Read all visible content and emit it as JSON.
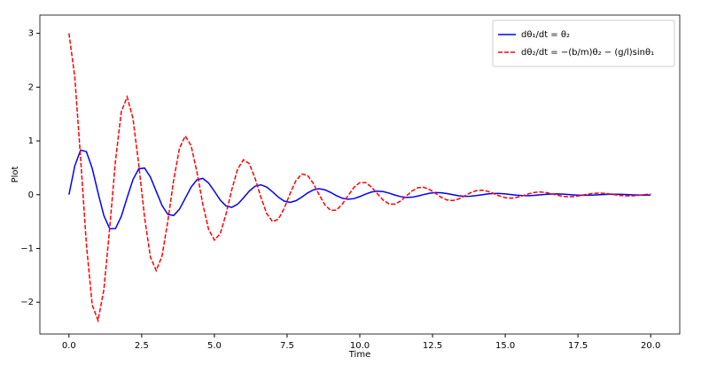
{
  "chart_data": {
    "type": "line",
    "xlabel": "Time",
    "ylabel": "Plot",
    "x": [
      0,
      0.2,
      0.4,
      0.6,
      0.8,
      1,
      1.2,
      1.4,
      1.6,
      1.8,
      2,
      2.2,
      2.4,
      2.6,
      2.8,
      3,
      3.2,
      3.4,
      3.6,
      3.8,
      4,
      4.2,
      4.4,
      4.6,
      4.8,
      5,
      5.2,
      5.4,
      5.6,
      5.8,
      6,
      6.2,
      6.4,
      6.6,
      6.8,
      7,
      7.2,
      7.4,
      7.6,
      7.8,
      8,
      8.2,
      8.4,
      8.6,
      8.8,
      9,
      9.2,
      9.4,
      9.6,
      9.8,
      10,
      10.2,
      10.4,
      10.6,
      10.8,
      11,
      11.2,
      11.4,
      11.6,
      11.8,
      12,
      12.2,
      12.4,
      12.6,
      12.8,
      13,
      13.2,
      13.4,
      13.6,
      13.8,
      14,
      14.2,
      14.4,
      14.6,
      14.8,
      15,
      15.2,
      15.4,
      15.6,
      15.8,
      16,
      16.2,
      16.4,
      16.6,
      16.8,
      17,
      17.2,
      17.4,
      17.6,
      17.8,
      18,
      18.2,
      18.4,
      18.6,
      18.8,
      19,
      19.2,
      19.4,
      19.6,
      19.8,
      20
    ],
    "series": [
      {
        "name": "dθ₁/dt = θ₂",
        "color": "#0000ff",
        "dash": false,
        "values": [
          0,
          0.535,
          0.829,
          0.8,
          0.49,
          0.035,
          -0.389,
          -0.632,
          -0.629,
          -0.402,
          -0.054,
          0.28,
          0.482,
          0.495,
          0.329,
          0.063,
          -0.2,
          -0.366,
          -0.387,
          -0.268,
          -0.065,
          0.141,
          0.278,
          0.303,
          0.218,
          0.064,
          -0.099,
          -0.21,
          -0.236,
          -0.176,
          -0.059,
          0.068,
          0.158,
          0.184,
          0.142,
          0.053,
          -0.046,
          -0.119,
          -0.143,
          -0.113,
          -0.047,
          0.03,
          0.089,
          0.111,
          0.091,
          0.041,
          -0.019,
          -0.066,
          -0.085,
          -0.073,
          -0.035,
          0.011,
          0.049,
          0.066,
          0.058,
          0.03,
          -0.006,
          -0.036,
          -0.051,
          -0.046,
          -0.025,
          0.003,
          0.027,
          0.039,
          0.036,
          0.021,
          0,
          -0.02,
          -0.03,
          -0.029,
          -0.017,
          -0.001,
          0.014,
          0.023,
          0.023,
          0.014,
          0.002,
          -0.01,
          -0.017,
          -0.018,
          -0.012,
          -0.002,
          0.007,
          0.013,
          0.014,
          0.01,
          0.002,
          -0.005,
          -0.01,
          -0.011,
          -0.008,
          -0.002,
          0.004,
          0.008,
          0.008,
          0.006,
          0.002,
          -0.003,
          -0.006,
          -0.007,
          -0.005
        ]
      },
      {
        "name": "dθ₂/dt = −(b/m)θ₂ − (g/l)sinθ₁",
        "color": "#ff0000",
        "dash": true,
        "values": [
          3,
          2.19,
          0.678,
          -0.929,
          -2.053,
          -2.34,
          -1.767,
          -0.624,
          0.634,
          1.544,
          1.819,
          1.42,
          0.556,
          -0.424,
          -1.16,
          -1.411,
          -1.139,
          -0.488,
          0.272,
          0.865,
          1.092,
          0.91,
          0.42,
          -0.17,
          -0.645,
          -0.844,
          -0.726,
          -0.359,
          0.098,
          0.478,
          0.65,
          0.576,
          0.304,
          -0.05,
          -0.353,
          -0.5,
          -0.456,
          -0.254,
          0.018,
          0.258,
          0.384,
          0.361,
          0.212,
          0.002,
          -0.189,
          -0.294,
          -0.285,
          -0.174,
          -0.014,
          0.137,
          0.225,
          0.224,
          0.144,
          0.02,
          -0.099,
          -0.171,
          -0.176,
          -0.117,
          -0.023,
          0.07,
          0.13,
          0.138,
          0.096,
          0.024,
          -0.05,
          -0.099,
          -0.108,
          -0.078,
          -0.023,
          0.035,
          0.074,
          0.084,
          0.063,
          0.021,
          -0.024,
          -0.056,
          -0.065,
          -0.05,
          -0.019,
          0.016,
          0.042,
          0.051,
          0.04,
          0.017,
          -0.01,
          -0.032,
          -0.039,
          -0.032,
          -0.015,
          0.007,
          0.023,
          0.03,
          0.026,
          0.013,
          -0.004,
          -0.017,
          -0.023,
          -0.02,
          -0.011,
          0.002,
          0.013
        ]
      }
    ],
    "xlim": [
      -1,
      21
    ],
    "ylim": [
      -2.59,
      3.34
    ],
    "xticks": [
      {
        "value": 0,
        "label": "0.0"
      },
      2.5,
      {
        "value": 5,
        "label": "5.0"
      },
      7.5,
      {
        "value": 10,
        "label": "10.0"
      },
      12.5,
      {
        "value": 15,
        "label": "15.0"
      },
      17.5,
      {
        "value": 20,
        "label": "20.0"
      }
    ],
    "yticks": [
      {
        "value": -2,
        "label": "−2"
      },
      {
        "value": -1,
        "label": "−1"
      },
      0,
      1,
      2,
      3
    ],
    "grid": false,
    "legend": "upper right"
  }
}
